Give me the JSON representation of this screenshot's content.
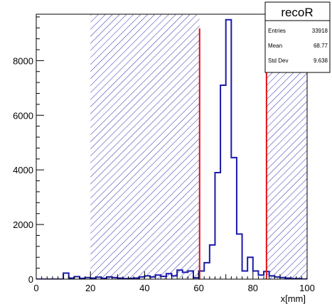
{
  "chart_data": {
    "type": "histogram",
    "title": "recoR",
    "xlabel": "x[mm]",
    "ylabel": "",
    "xlim": [
      0,
      100
    ],
    "ylim": [
      0,
      9700
    ],
    "bin_width": 2,
    "x_ticks": [
      "0",
      "20",
      "40",
      "60",
      "80",
      "100"
    ],
    "y_ticks": [
      "0",
      "2000",
      "4000",
      "6000",
      "8000"
    ],
    "series": [
      {
        "bin_edges": [
          0,
          2,
          4,
          6,
          8,
          10,
          12,
          14,
          16,
          18,
          20,
          22,
          24,
          26,
          28,
          30,
          32,
          34,
          36,
          38,
          40,
          42,
          44,
          46,
          48,
          50,
          52,
          54,
          56,
          58,
          60,
          62,
          64,
          66,
          68,
          70,
          72,
          74,
          76,
          78,
          80,
          82,
          84,
          86,
          88,
          90,
          92,
          94,
          96,
          98,
          100
        ],
        "values": [
          0,
          0,
          0,
          0,
          0,
          220,
          40,
          90,
          30,
          60,
          40,
          70,
          30,
          80,
          60,
          40,
          20,
          30,
          40,
          80,
          120,
          80,
          150,
          100,
          200,
          120,
          330,
          250,
          300,
          50,
          300,
          600,
          1250,
          3900,
          7100,
          9500,
          4450,
          1650,
          300,
          800,
          300,
          150,
          280,
          120,
          80,
          60,
          40,
          20,
          20,
          0
        ],
        "color": "#1a1aa8"
      }
    ],
    "cut_lines": [
      60.3,
      85
    ],
    "excluded_regions": [
      [
        20,
        60.3
      ],
      [
        85,
        100
      ]
    ],
    "stats_box": {
      "title": "recoR",
      "rows": [
        {
          "label": "Entries",
          "value": "33918"
        },
        {
          "label": "Mean",
          "value": "68.77"
        },
        {
          "label": "Std Dev",
          "value": "9.638"
        }
      ]
    },
    "colors": {
      "histogram": "#1a1aa8",
      "cut_line": "#e01010",
      "hatch": "#2a2ab0"
    }
  }
}
